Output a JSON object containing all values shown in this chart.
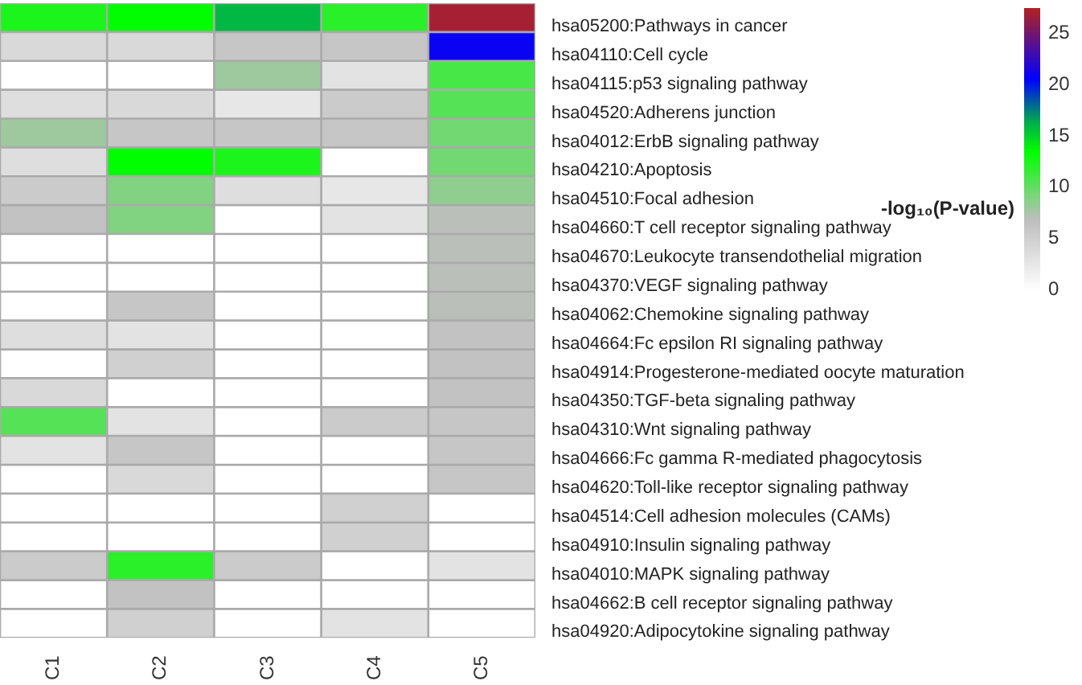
{
  "chart_data": {
    "type": "heatmap",
    "clabel": "-log₁₀(P-value)",
    "categories": [
      "C1",
      "C2",
      "C3",
      "C4",
      "C5"
    ],
    "y_categories": [
      "hsa05200:Pathways in cancer",
      "hsa04110:Cell cycle",
      "hsa04115:p53 signaling pathway",
      "hsa04520:Adherens junction",
      "hsa04012:ErbB signaling pathway",
      "hsa04210:Apoptosis",
      "hsa04510:Focal adhesion",
      "hsa04660:T cell receptor signaling pathway",
      "hsa04670:Leukocyte transendothelial migration",
      "hsa04370:VEGF signaling pathway",
      "hsa04062:Chemokine signaling pathway",
      "hsa04664:Fc epsilon RI signaling pathway",
      "hsa04914:Progesterone-mediated oocyte maturation",
      "hsa04350:TGF-beta signaling pathway",
      "hsa04310:Wnt signaling pathway",
      "hsa04666:Fc gamma R-mediated phagocytosis",
      "hsa04620:Toll-like receptor signaling pathway",
      "hsa04514:Cell adhesion molecules (CAMs)",
      "hsa04910:Insulin signaling pathway",
      "hsa04010:MAPK signaling pathway",
      "hsa04662:B cell receptor signaling pathway",
      "hsa04920:Adipocytokine signaling pathway"
    ],
    "cells": [
      [
        12.5,
        13.5,
        16,
        12,
        27
      ],
      [
        4,
        4,
        6,
        6,
        21
      ],
      [
        0,
        0,
        8,
        3,
        11
      ],
      [
        3.5,
        4,
        2.5,
        5.5,
        10.5
      ],
      [
        8,
        6,
        6,
        6,
        9.5
      ],
      [
        3.5,
        13.5,
        12.5,
        0,
        9.5
      ],
      [
        5.5,
        9,
        3.5,
        2.5,
        8.5
      ],
      [
        6.5,
        9,
        0,
        3,
        7
      ],
      [
        0,
        0,
        0,
        0,
        7
      ],
      [
        0,
        0,
        0,
        0,
        7
      ],
      [
        0,
        6,
        0,
        0,
        7
      ],
      [
        3.5,
        3,
        0,
        0,
        6.5
      ],
      [
        0,
        5,
        0,
        0,
        6.5
      ],
      [
        4,
        0,
        0,
        0,
        6.5
      ],
      [
        10.5,
        3,
        0,
        5.5,
        6
      ],
      [
        3,
        6,
        0,
        0,
        6
      ],
      [
        0,
        4,
        0,
        0,
        6
      ],
      [
        0,
        0,
        0,
        5,
        0
      ],
      [
        0,
        0,
        0,
        5,
        0
      ],
      [
        5.5,
        12,
        5.5,
        0,
        3
      ],
      [
        0,
        6.5,
        0,
        0,
        0
      ],
      [
        0,
        5,
        0,
        3,
        0
      ]
    ],
    "clim": [
      0,
      27.5
    ],
    "cticks": [
      0,
      5,
      10,
      15,
      20,
      25
    ]
  }
}
